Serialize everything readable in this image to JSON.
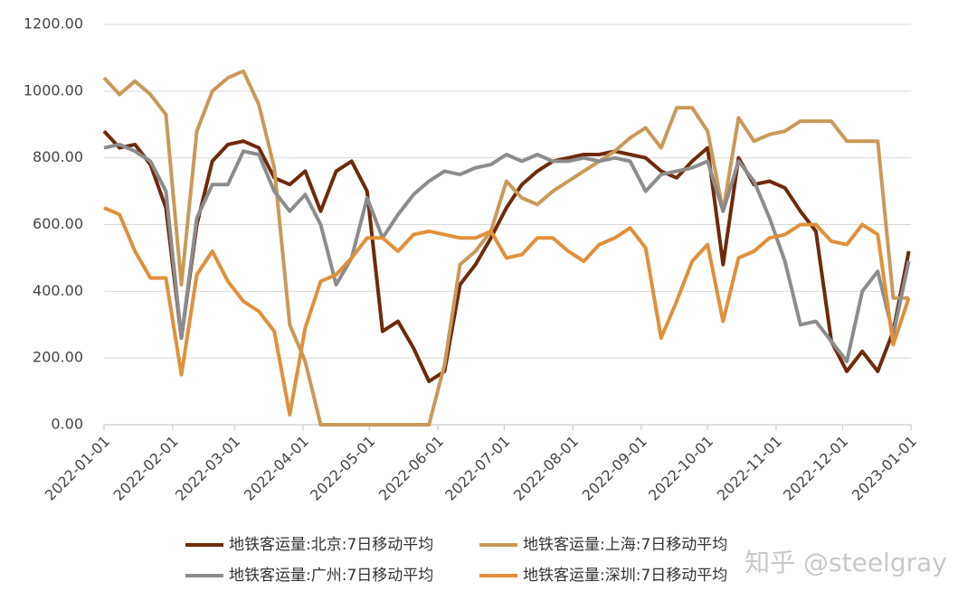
{
  "chart_data": {
    "type": "line",
    "x": [
      "2022-01-01",
      "2022-01-08",
      "2022-01-15",
      "2022-01-22",
      "2022-01-29",
      "2022-02-05",
      "2022-02-12",
      "2022-02-19",
      "2022-02-26",
      "2022-03-05",
      "2022-03-12",
      "2022-03-19",
      "2022-03-26",
      "2022-04-02",
      "2022-04-09",
      "2022-04-16",
      "2022-04-23",
      "2022-04-30",
      "2022-05-07",
      "2022-05-14",
      "2022-05-21",
      "2022-05-28",
      "2022-06-04",
      "2022-06-11",
      "2022-06-18",
      "2022-06-25",
      "2022-07-02",
      "2022-07-09",
      "2022-07-16",
      "2022-07-23",
      "2022-07-30",
      "2022-08-06",
      "2022-08-13",
      "2022-08-20",
      "2022-08-27",
      "2022-09-03",
      "2022-09-10",
      "2022-09-17",
      "2022-09-24",
      "2022-10-01",
      "2022-10-08",
      "2022-10-15",
      "2022-10-22",
      "2022-10-29",
      "2022-11-05",
      "2022-11-12",
      "2022-11-19",
      "2022-11-26",
      "2022-12-03",
      "2022-12-10",
      "2022-12-17",
      "2022-12-24",
      "2022-12-31"
    ],
    "series": [
      {
        "name": "地铁客运量:北京:7日移动平均",
        "color": "#6e2a0c",
        "values": [
          880,
          830,
          840,
          780,
          650,
          260,
          600,
          790,
          840,
          850,
          830,
          740,
          720,
          760,
          640,
          760,
          790,
          700,
          280,
          310,
          230,
          130,
          160,
          420,
          480,
          560,
          650,
          720,
          760,
          790,
          800,
          810,
          810,
          820,
          810,
          800,
          760,
          740,
          790,
          830,
          480,
          800,
          720,
          730,
          710,
          640,
          580,
          250,
          160,
          220,
          160,
          280,
          520
        ]
      },
      {
        "name": "地铁客运量:上海:7日移动平均",
        "color": "#c9995a",
        "values": [
          1040,
          990,
          1030,
          990,
          930,
          420,
          880,
          1000,
          1040,
          1060,
          960,
          770,
          300,
          190,
          0,
          0,
          0,
          0,
          0,
          0,
          0,
          0,
          180,
          480,
          520,
          580,
          730,
          680,
          660,
          700,
          730,
          760,
          790,
          820,
          860,
          890,
          830,
          950,
          950,
          880,
          640,
          920,
          850,
          870,
          880,
          910,
          910,
          910,
          850,
          850,
          850,
          380,
          380
        ]
      },
      {
        "name": "地铁客运量:广州:7日移动平均",
        "color": "#8c8c8c",
        "values": [
          830,
          840,
          820,
          790,
          700,
          260,
          620,
          720,
          720,
          820,
          810,
          700,
          640,
          690,
          600,
          420,
          500,
          680,
          560,
          630,
          690,
          730,
          760,
          750,
          770,
          780,
          810,
          790,
          810,
          790,
          790,
          800,
          790,
          800,
          790,
          700,
          750,
          760,
          770,
          790,
          640,
          790,
          730,
          620,
          490,
          300,
          310,
          250,
          190,
          400,
          460,
          270,
          490
        ]
      },
      {
        "name": "地铁客运量:深圳:7日移动平均",
        "color": "#e0903a",
        "values": [
          650,
          630,
          520,
          440,
          440,
          150,
          450,
          520,
          430,
          370,
          340,
          280,
          30,
          290,
          430,
          450,
          500,
          560,
          560,
          520,
          570,
          580,
          570,
          560,
          560,
          580,
          500,
          510,
          560,
          560,
          520,
          490,
          540,
          560,
          590,
          530,
          260,
          370,
          490,
          540,
          310,
          500,
          520,
          560,
          570,
          600,
          600,
          550,
          540,
          600,
          570,
          240,
          380
        ]
      }
    ],
    "xlim": [
      "2022-01-01",
      "2023-01-01"
    ],
    "xticks": [
      "2022-01-01",
      "2022-02-01",
      "2022-03-01",
      "2022-04-01",
      "2022-05-01",
      "2022-06-01",
      "2022-07-01",
      "2022-08-01",
      "2022-09-01",
      "2022-10-01",
      "2022-11-01",
      "2022-12-01",
      "2023-01-01"
    ],
    "ylim": [
      0,
      1200
    ],
    "yticks": [
      {
        "value": 0,
        "label": "0.00"
      },
      {
        "value": 200,
        "label": "200.00"
      },
      {
        "value": 400,
        "label": "400.00"
      },
      {
        "value": 600,
        "label": "600.00"
      },
      {
        "value": 800,
        "label": "800.00"
      },
      {
        "value": 1000,
        "label": "1000.00"
      },
      {
        "value": 1200,
        "label": "1200.00"
      }
    ],
    "grid": true,
    "legend": "bottom",
    "watermark": "知乎 @steelgray"
  }
}
